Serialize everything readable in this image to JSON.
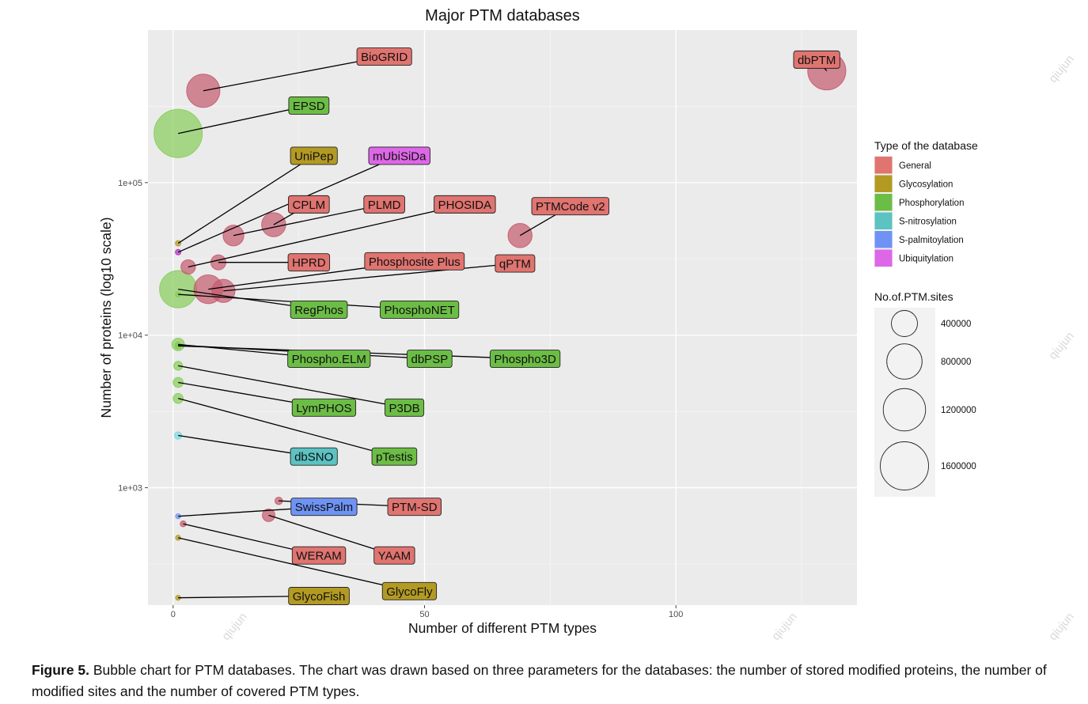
{
  "figure": {
    "caption_label": "Figure 5.",
    "caption_text": "Bubble chart for PTM databases. The chart was drawn based on three parameters for the databases: the number of stored modified proteins, the number of modified sites and the number of covered PTM types.",
    "watermark": "qiujun"
  },
  "chart_data": {
    "type": "scatter",
    "title": "Major PTM databases",
    "xlabel": "Number of different PTM types",
    "ylabel": "Number of proteins (log10 scale)",
    "xlim": [
      -5,
      136
    ],
    "x_ticks": [
      0,
      50,
      100
    ],
    "x_tick_labels": [
      "0",
      "50",
      "100"
    ],
    "y_scale": "log10",
    "ylim": [
      170,
      1000000
    ],
    "y_ticks": [
      1000,
      10000,
      100000
    ],
    "y_tick_labels": [
      "1e+03",
      "1e+04",
      "1e+05"
    ],
    "grid": true,
    "legend_position": "right",
    "color_legend": {
      "title": "Type of the database",
      "entries": [
        {
          "name": "General",
          "color": "#e07470"
        },
        {
          "name": "Glycosylation",
          "color": "#b39a23"
        },
        {
          "name": "Phosphorylation",
          "color": "#6cbd45"
        },
        {
          "name": "S-nitrosylation",
          "color": "#5cc2c2"
        },
        {
          "name": "S-palmitoylation",
          "color": "#6f93f4"
        },
        {
          "name": "Ubiquitylation",
          "color": "#dd67e6"
        }
      ]
    },
    "size_legend": {
      "title": "No.of.PTM.sites",
      "entries": [
        400000,
        800000,
        1200000,
        1600000
      ],
      "entry_labels": [
        "400000",
        "800000",
        "1200000",
        "1600000"
      ]
    },
    "fill_colors": {
      "General": "#c45a6e",
      "Glycosylation": "#b39a23",
      "Phosphorylation": "#87cd5a",
      "S-nitrosylation": "#7fd8e0",
      "S-palmitoylation": "#6f93f4",
      "Ubiquitylation": "#b52fc0"
    },
    "points": [
      {
        "name": "BioGRID",
        "type": "General",
        "x": 6,
        "y": 400000,
        "sites": 700000,
        "label_x": 42,
        "label_y": 670000
      },
      {
        "name": "dbPTM",
        "type": "General",
        "x": 130,
        "y": 540000,
        "sites": 950000,
        "label_x": 128,
        "label_y": 640000
      },
      {
        "name": "EPSD",
        "type": "Phosphorylation",
        "x": 1,
        "y": 210000,
        "sites": 1600000,
        "label_x": 27,
        "label_y": 320000
      },
      {
        "name": "UniPep",
        "type": "Glycosylation",
        "x": 1,
        "y": 40000,
        "sites": 2000,
        "label_x": 28,
        "label_y": 150000
      },
      {
        "name": "mUbiSiDa",
        "type": "Ubiquitylation",
        "x": 1,
        "y": 35000,
        "sites": 2000,
        "label_x": 45,
        "label_y": 150000
      },
      {
        "name": "CPLM",
        "type": "General",
        "x": 20,
        "y": 53000,
        "sites": 330000,
        "label_x": 27,
        "label_y": 72000
      },
      {
        "name": "PLMD",
        "type": "General",
        "x": 12,
        "y": 45000,
        "sites": 230000,
        "label_x": 42,
        "label_y": 72000
      },
      {
        "name": "PHOSIDA",
        "type": "General",
        "x": 3,
        "y": 28000,
        "sites": 90000,
        "label_x": 58,
        "label_y": 72000
      },
      {
        "name": "PTMCode v2",
        "type": "General",
        "x": 69,
        "y": 45000,
        "sites": 330000,
        "label_x": 79,
        "label_y": 70000
      },
      {
        "name": "HPRD",
        "type": "General",
        "x": 9,
        "y": 30000,
        "sites": 100000,
        "label_x": 27,
        "label_y": 30000
      },
      {
        "name": "Phosphosite Plus",
        "type": "General",
        "x": 7,
        "y": 20000,
        "sites": 500000,
        "label_x": 48,
        "label_y": 30500
      },
      {
        "name": "qPTM",
        "type": "General",
        "x": 10,
        "y": 19500,
        "sites": 300000,
        "label_x": 68,
        "label_y": 29500
      },
      {
        "name": "RegPhos",
        "type": "Phosphorylation",
        "x": 1,
        "y": 20000,
        "sites": 900000,
        "label_x": 29,
        "label_y": 14700
      },
      {
        "name": "PhosphoNET",
        "type": "Phosphorylation",
        "x": 1,
        "y": 18500,
        "sites": 2000,
        "label_x": 49,
        "label_y": 14700
      },
      {
        "name": "Phospho.ELM",
        "type": "Phosphorylation",
        "x": 1,
        "y": 8700,
        "sites": 60000,
        "label_x": 31,
        "label_y": 7000
      },
      {
        "name": "dbPSP",
        "type": "Phosphorylation",
        "x": 1,
        "y": 8600,
        "sites": 5000,
        "label_x": 51,
        "label_y": 7000
      },
      {
        "name": "Phospho3D",
        "type": "Phosphorylation",
        "x": 1,
        "y": 8500,
        "sites": 5000,
        "label_x": 70,
        "label_y": 7000
      },
      {
        "name": "P3DB",
        "type": "Phosphorylation",
        "x": 1,
        "y": 6300,
        "sites": 20000,
        "label_x": 46,
        "label_y": 3350
      },
      {
        "name": "LymPHOS",
        "type": "Phosphorylation",
        "x": 1,
        "y": 4900,
        "sites": 30000,
        "label_x": 30,
        "label_y": 3350
      },
      {
        "name": "pTestis",
        "type": "Phosphorylation",
        "x": 1,
        "y": 3850,
        "sites": 30000,
        "label_x": 44,
        "label_y": 1600
      },
      {
        "name": "dbSNO",
        "type": "S-nitrosylation",
        "x": 1,
        "y": 2200,
        "sites": 10000,
        "label_x": 28,
        "label_y": 1600
      },
      {
        "name": "SwissPalm",
        "type": "S-palmitoylation",
        "x": 1,
        "y": 650,
        "sites": 1000,
        "label_x": 30,
        "label_y": 750
      },
      {
        "name": "PTM-SD",
        "type": "General",
        "x": 21,
        "y": 820,
        "sites": 10000,
        "label_x": 48,
        "label_y": 750
      },
      {
        "name": "YAAM",
        "type": "General",
        "x": 19,
        "y": 660,
        "sites": 60000,
        "label_x": 44,
        "label_y": 360
      },
      {
        "name": "WERAM",
        "type": "General",
        "x": 2,
        "y": 580,
        "sites": 3000,
        "label_x": 29,
        "label_y": 360
      },
      {
        "name": "GlycoFly",
        "type": "Glycosylation",
        "x": 1,
        "y": 470,
        "sites": 1000,
        "label_x": 47,
        "label_y": 210
      },
      {
        "name": "GlycoFish",
        "type": "Glycosylation",
        "x": 1,
        "y": 190,
        "sites": 1000,
        "label_x": 29,
        "label_y": 195
      }
    ]
  }
}
